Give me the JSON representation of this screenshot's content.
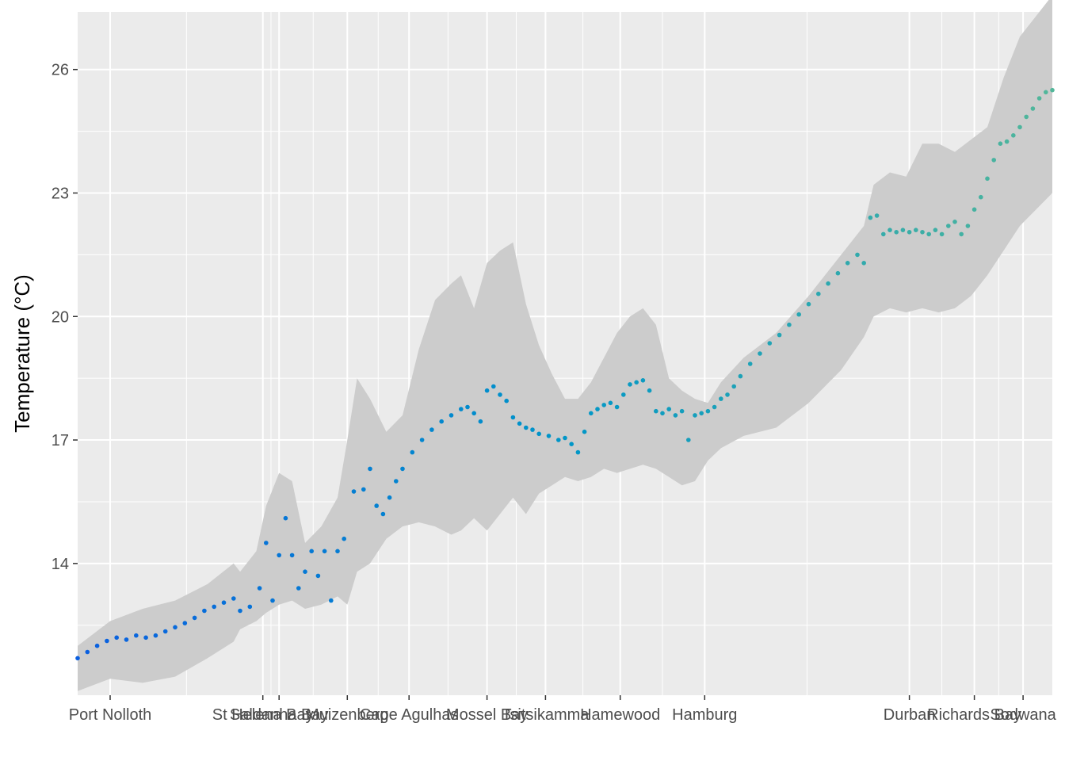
{
  "chart_data": {
    "type": "scatter",
    "title": "",
    "xlabel": "",
    "ylabel": "Temperature (°C)",
    "ylim": [
      10.8,
      27.4
    ],
    "y_ticks": [
      14,
      17,
      20,
      23,
      26
    ],
    "x_unit": "site index",
    "xlim": [
      0,
      300
    ],
    "x_ticks": [
      {
        "label": "Port Nolloth",
        "pos": 10
      },
      {
        "label": "St Helena Bay",
        "pos": 57
      },
      {
        "label": "Saldanha Bay",
        "pos": 62
      },
      {
        "label": "Muizenberg",
        "pos": 83
      },
      {
        "label": "Cape Agulhas",
        "pos": 102
      },
      {
        "label": "Mossel Bay",
        "pos": 126
      },
      {
        "label": "Tsitsikamma",
        "pos": 144
      },
      {
        "label": "Hamewood",
        "pos": 167
      },
      {
        "label": "Hamburg",
        "pos": 193
      },
      {
        "label": "Durban",
        "pos": 256
      },
      {
        "label": "Richards Bay",
        "pos": 276
      },
      {
        "label": "Sodwana",
        "pos": 291
      }
    ],
    "series": [
      {
        "values": [
          [
            0,
            11.7
          ],
          [
            3,
            11.85
          ],
          [
            6,
            12.0
          ],
          [
            9,
            12.12
          ],
          [
            12,
            12.2
          ],
          [
            15,
            12.15
          ],
          [
            18,
            12.25
          ],
          [
            21,
            12.2
          ],
          [
            24,
            12.25
          ],
          [
            27,
            12.35
          ],
          [
            30,
            12.45
          ],
          [
            33,
            12.55
          ],
          [
            36,
            12.68
          ],
          [
            39,
            12.85
          ],
          [
            42,
            12.95
          ],
          [
            45,
            13.05
          ],
          [
            48,
            13.15
          ],
          [
            50,
            12.85
          ],
          [
            53,
            12.95
          ],
          [
            56,
            13.4
          ],
          [
            58,
            14.5
          ],
          [
            60,
            13.1
          ],
          [
            62,
            14.2
          ],
          [
            64,
            15.1
          ],
          [
            66,
            14.2
          ],
          [
            68,
            13.4
          ],
          [
            70,
            13.8
          ],
          [
            72,
            14.3
          ],
          [
            74,
            13.7
          ],
          [
            76,
            14.3
          ],
          [
            78,
            13.1
          ],
          [
            80,
            14.3
          ],
          [
            82,
            14.6
          ],
          [
            85,
            15.75
          ],
          [
            88,
            15.8
          ],
          [
            90,
            16.3
          ],
          [
            92,
            15.4
          ],
          [
            94,
            15.2
          ],
          [
            96,
            15.6
          ],
          [
            98,
            16.0
          ],
          [
            100,
            16.3
          ],
          [
            103,
            16.7
          ],
          [
            106,
            17.0
          ],
          [
            109,
            17.25
          ],
          [
            112,
            17.45
          ],
          [
            115,
            17.6
          ],
          [
            118,
            17.75
          ],
          [
            120,
            17.8
          ],
          [
            122,
            17.65
          ],
          [
            124,
            17.45
          ],
          [
            126,
            18.2
          ],
          [
            128,
            18.3
          ],
          [
            130,
            18.1
          ],
          [
            132,
            17.95
          ],
          [
            134,
            17.55
          ],
          [
            136,
            17.4
          ],
          [
            138,
            17.3
          ],
          [
            140,
            17.25
          ],
          [
            142,
            17.15
          ],
          [
            145,
            17.1
          ],
          [
            148,
            17.0
          ],
          [
            150,
            17.05
          ],
          [
            152,
            16.9
          ],
          [
            154,
            16.7
          ],
          [
            156,
            17.2
          ],
          [
            158,
            17.65
          ],
          [
            160,
            17.75
          ],
          [
            162,
            17.85
          ],
          [
            164,
            17.9
          ],
          [
            166,
            17.8
          ],
          [
            168,
            18.1
          ],
          [
            170,
            18.35
          ],
          [
            172,
            18.4
          ],
          [
            174,
            18.45
          ],
          [
            176,
            18.2
          ],
          [
            178,
            17.7
          ],
          [
            180,
            17.65
          ],
          [
            182,
            17.75
          ],
          [
            184,
            17.6
          ],
          [
            186,
            17.7
          ],
          [
            188,
            17.0
          ],
          [
            190,
            17.6
          ],
          [
            192,
            17.65
          ],
          [
            194,
            17.7
          ],
          [
            196,
            17.8
          ],
          [
            198,
            18.0
          ],
          [
            200,
            18.1
          ],
          [
            202,
            18.3
          ],
          [
            204,
            18.55
          ],
          [
            207,
            18.85
          ],
          [
            210,
            19.1
          ],
          [
            213,
            19.35
          ],
          [
            216,
            19.55
          ],
          [
            219,
            19.8
          ],
          [
            222,
            20.05
          ],
          [
            225,
            20.3
          ],
          [
            228,
            20.55
          ],
          [
            231,
            20.8
          ],
          [
            234,
            21.05
          ],
          [
            237,
            21.3
          ],
          [
            240,
            21.5
          ],
          [
            242,
            21.3
          ],
          [
            244,
            22.4
          ],
          [
            246,
            22.45
          ],
          [
            248,
            22.0
          ],
          [
            250,
            22.1
          ],
          [
            252,
            22.05
          ],
          [
            254,
            22.1
          ],
          [
            256,
            22.05
          ],
          [
            258,
            22.1
          ],
          [
            260,
            22.05
          ],
          [
            262,
            22.0
          ],
          [
            264,
            22.1
          ],
          [
            266,
            22.0
          ],
          [
            268,
            22.2
          ],
          [
            270,
            22.3
          ],
          [
            272,
            22.0
          ],
          [
            274,
            22.2
          ],
          [
            276,
            22.6
          ],
          [
            278,
            22.9
          ],
          [
            280,
            23.35
          ],
          [
            282,
            23.8
          ],
          [
            284,
            24.2
          ],
          [
            286,
            24.25
          ],
          [
            288,
            24.4
          ],
          [
            290,
            24.6
          ],
          [
            292,
            24.85
          ],
          [
            294,
            25.05
          ],
          [
            296,
            25.3
          ],
          [
            298,
            25.45
          ],
          [
            300,
            25.5
          ]
        ]
      }
    ],
    "ribbon": {
      "x": [
        0,
        10,
        20,
        30,
        40,
        48,
        50,
        55,
        58,
        62,
        66,
        70,
        75,
        80,
        83,
        86,
        90,
        95,
        100,
        105,
        110,
        115,
        118,
        122,
        126,
        130,
        134,
        138,
        142,
        146,
        150,
        154,
        158,
        162,
        166,
        170,
        174,
        178,
        182,
        186,
        190,
        194,
        198,
        205,
        215,
        225,
        235,
        242,
        245,
        250,
        255,
        260,
        265,
        270,
        275,
        280,
        285,
        290,
        295,
        300
      ],
      "lower": [
        10.9,
        11.2,
        11.1,
        11.25,
        11.7,
        12.1,
        12.4,
        12.6,
        12.8,
        13.0,
        13.1,
        12.9,
        13.0,
        13.2,
        13.0,
        13.8,
        14.0,
        14.6,
        14.9,
        15.0,
        14.9,
        14.7,
        14.8,
        15.1,
        14.8,
        15.2,
        15.6,
        15.2,
        15.7,
        15.9,
        16.1,
        16.0,
        16.1,
        16.3,
        16.2,
        16.3,
        16.4,
        16.3,
        16.1,
        15.9,
        16.0,
        16.5,
        16.8,
        17.1,
        17.3,
        17.9,
        18.7,
        19.5,
        20.0,
        20.2,
        20.1,
        20.2,
        20.1,
        20.2,
        20.5,
        21.0,
        21.6,
        22.2,
        22.6,
        23.0
      ],
      "upper": [
        12.0,
        12.6,
        12.9,
        13.1,
        13.5,
        14.0,
        13.8,
        14.3,
        15.4,
        16.2,
        16.0,
        14.5,
        14.9,
        15.6,
        17.0,
        18.5,
        18.0,
        17.2,
        17.6,
        19.2,
        20.4,
        20.8,
        21.0,
        20.2,
        21.3,
        21.6,
        21.8,
        20.3,
        19.3,
        18.6,
        18.0,
        18.0,
        18.4,
        19.0,
        19.6,
        20.0,
        20.2,
        19.8,
        18.5,
        18.2,
        18.0,
        17.9,
        18.4,
        19.0,
        19.6,
        20.5,
        21.5,
        22.2,
        23.2,
        23.5,
        23.4,
        24.2,
        24.2,
        24.0,
        24.3,
        24.6,
        25.8,
        26.8,
        27.3,
        27.8
      ]
    },
    "colors": {
      "panel_bg": "#ebebeb",
      "grid_major": "#ffffff",
      "ribbon": "#cccccc",
      "point_start": "#0a5fe0",
      "point_mid": "#0096c8",
      "point_end": "#52b79a"
    },
    "grid": true,
    "legend": "none"
  }
}
